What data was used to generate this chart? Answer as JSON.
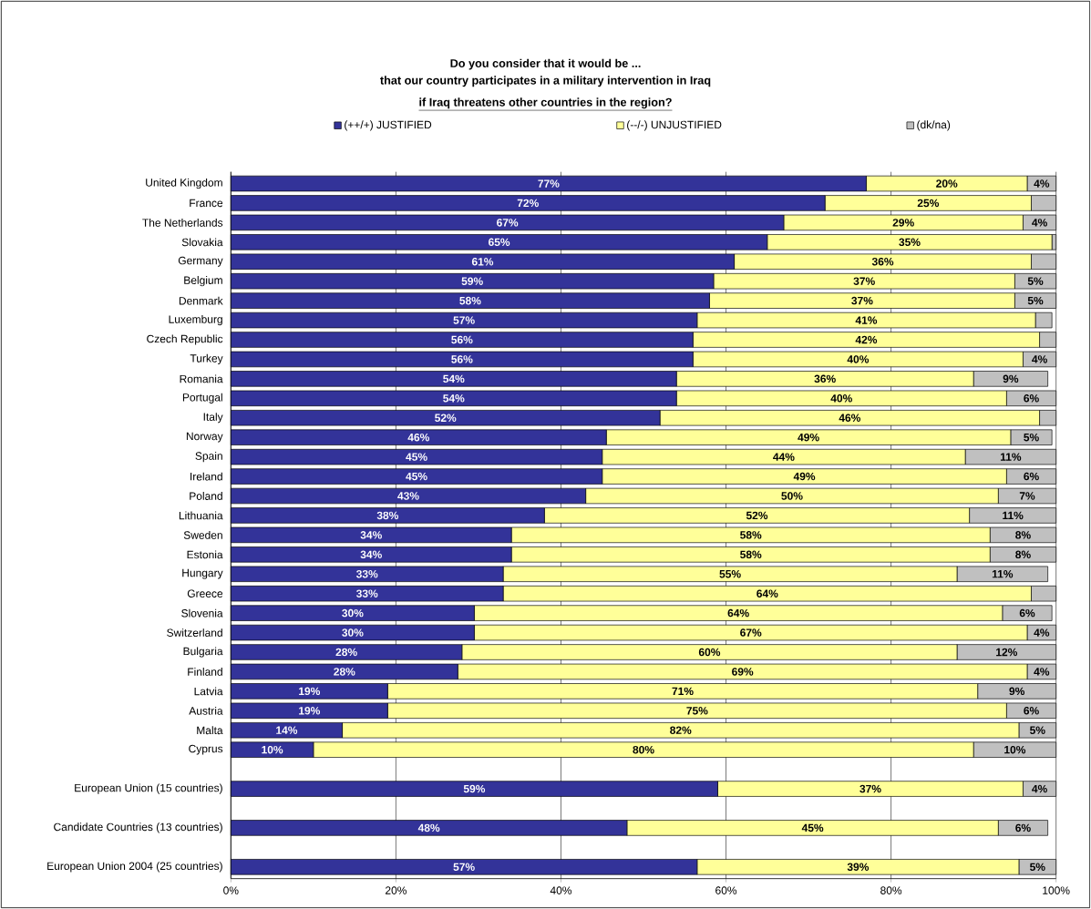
{
  "chart_data": {
    "type": "bar",
    "orientation": "horizontal",
    "stacked": true,
    "title": "Do you consider that it would be ...",
    "subtitle": "that our country participates in a military intervention in Iraq",
    "annotations": [
      "if Iraq threatens other countries in the region?"
    ],
    "categories": [
      "United Kingdom",
      "France",
      "The Netherlands",
      "Slovakia",
      "Germany",
      "Belgium",
      "Denmark",
      "Luxemburg",
      "Czech Republic",
      "Turkey",
      "Romania",
      "Portugal",
      "Italy",
      "Norway",
      "Spain",
      "Ireland",
      "Poland",
      "Lithuania",
      "Sweden",
      "Estonia",
      "Hungary",
      "Greece",
      "Slovenia",
      "Switzerland",
      "Bulgaria",
      "Finland",
      "Latvia",
      "Austria",
      "Malta",
      "Cyprus",
      null,
      "European Union (15 countries)",
      null,
      "Candidate Countries (13 countries)",
      null,
      "European Union 2004 (25 countries)"
    ],
    "series": [
      {
        "name": "(++/+) JUSTIFIED",
        "color": "#333399",
        "values": [
          77,
          72,
          67,
          65,
          61,
          58.5,
          58,
          56.5,
          56,
          56,
          54,
          54,
          52,
          45.5,
          45,
          45,
          43,
          38,
          34,
          34,
          33,
          33,
          29.5,
          29.5,
          28,
          27.5,
          19,
          19,
          13.5,
          10,
          null,
          59,
          null,
          48,
          null,
          56.5
        ],
        "value_labels": [
          "77%",
          "72%",
          "67%",
          "65%",
          "61%",
          "59%",
          "58%",
          "57%",
          "56%",
          "56%",
          "54%",
          "54%",
          "52%",
          "46%",
          "45%",
          "45%",
          "43%",
          "38%",
          "34%",
          "34%",
          "33%",
          "33%",
          "30%",
          "30%",
          "28%",
          "28%",
          "19%",
          "19%",
          "14%",
          "10%",
          null,
          "59%",
          null,
          "48%",
          null,
          "57%"
        ]
      },
      {
        "name": "(--/-) UNJUSTIFIED",
        "color": "#ffff99",
        "values": [
          19.5,
          25,
          29,
          34.5,
          36,
          36.5,
          37,
          41,
          42,
          40,
          36,
          40,
          46,
          49,
          44,
          49,
          50,
          51.5,
          58,
          58,
          55,
          64,
          64,
          67,
          60,
          69,
          71.5,
          75,
          82,
          80,
          null,
          37,
          null,
          45,
          null,
          39
        ],
        "value_labels": [
          "20%",
          "25%",
          "29%",
          "35%",
          "36%",
          "37%",
          "37%",
          "41%",
          "42%",
          "40%",
          "36%",
          "40%",
          "46%",
          "49%",
          "44%",
          "49%",
          "50%",
          "52%",
          "58%",
          "58%",
          "55%",
          "64%",
          "64%",
          "67%",
          "60%",
          "69%",
          "71%",
          "75%",
          "82%",
          "80%",
          null,
          "37%",
          null,
          "45%",
          null,
          "39%"
        ]
      },
      {
        "name": "(dk/na)",
        "color": "#c0c0c0",
        "values": [
          3.5,
          3,
          4,
          0.5,
          3,
          5,
          5,
          2,
          2,
          4,
          9,
          6,
          2,
          5,
          11,
          6,
          7,
          10.5,
          8,
          8,
          11,
          3,
          6,
          3.5,
          12,
          3.5,
          9.5,
          6,
          4.5,
          10,
          null,
          4,
          null,
          6,
          null,
          4.5
        ],
        "value_labels": [
          "4%",
          null,
          "4%",
          null,
          null,
          "5%",
          "5%",
          null,
          null,
          "4%",
          "9%",
          "6%",
          null,
          "5%",
          "11%",
          "6%",
          "7%",
          "11%",
          "8%",
          "8%",
          "11%",
          null,
          "6%",
          "4%",
          "12%",
          "4%",
          "9%",
          "6%",
          "5%",
          "10%",
          null,
          "4%",
          null,
          "6%",
          null,
          "5%"
        ]
      }
    ],
    "xlim": [
      0,
      100
    ],
    "xticks": [
      {
        "value": 0,
        "label": "0%"
      },
      {
        "value": 20,
        "label": "20%"
      },
      {
        "value": 40,
        "label": "40%"
      },
      {
        "value": 60,
        "label": "60%"
      },
      {
        "value": 80,
        "label": "80%"
      },
      {
        "value": 100,
        "label": "100%"
      }
    ],
    "grid": "x",
    "legend": "top"
  }
}
